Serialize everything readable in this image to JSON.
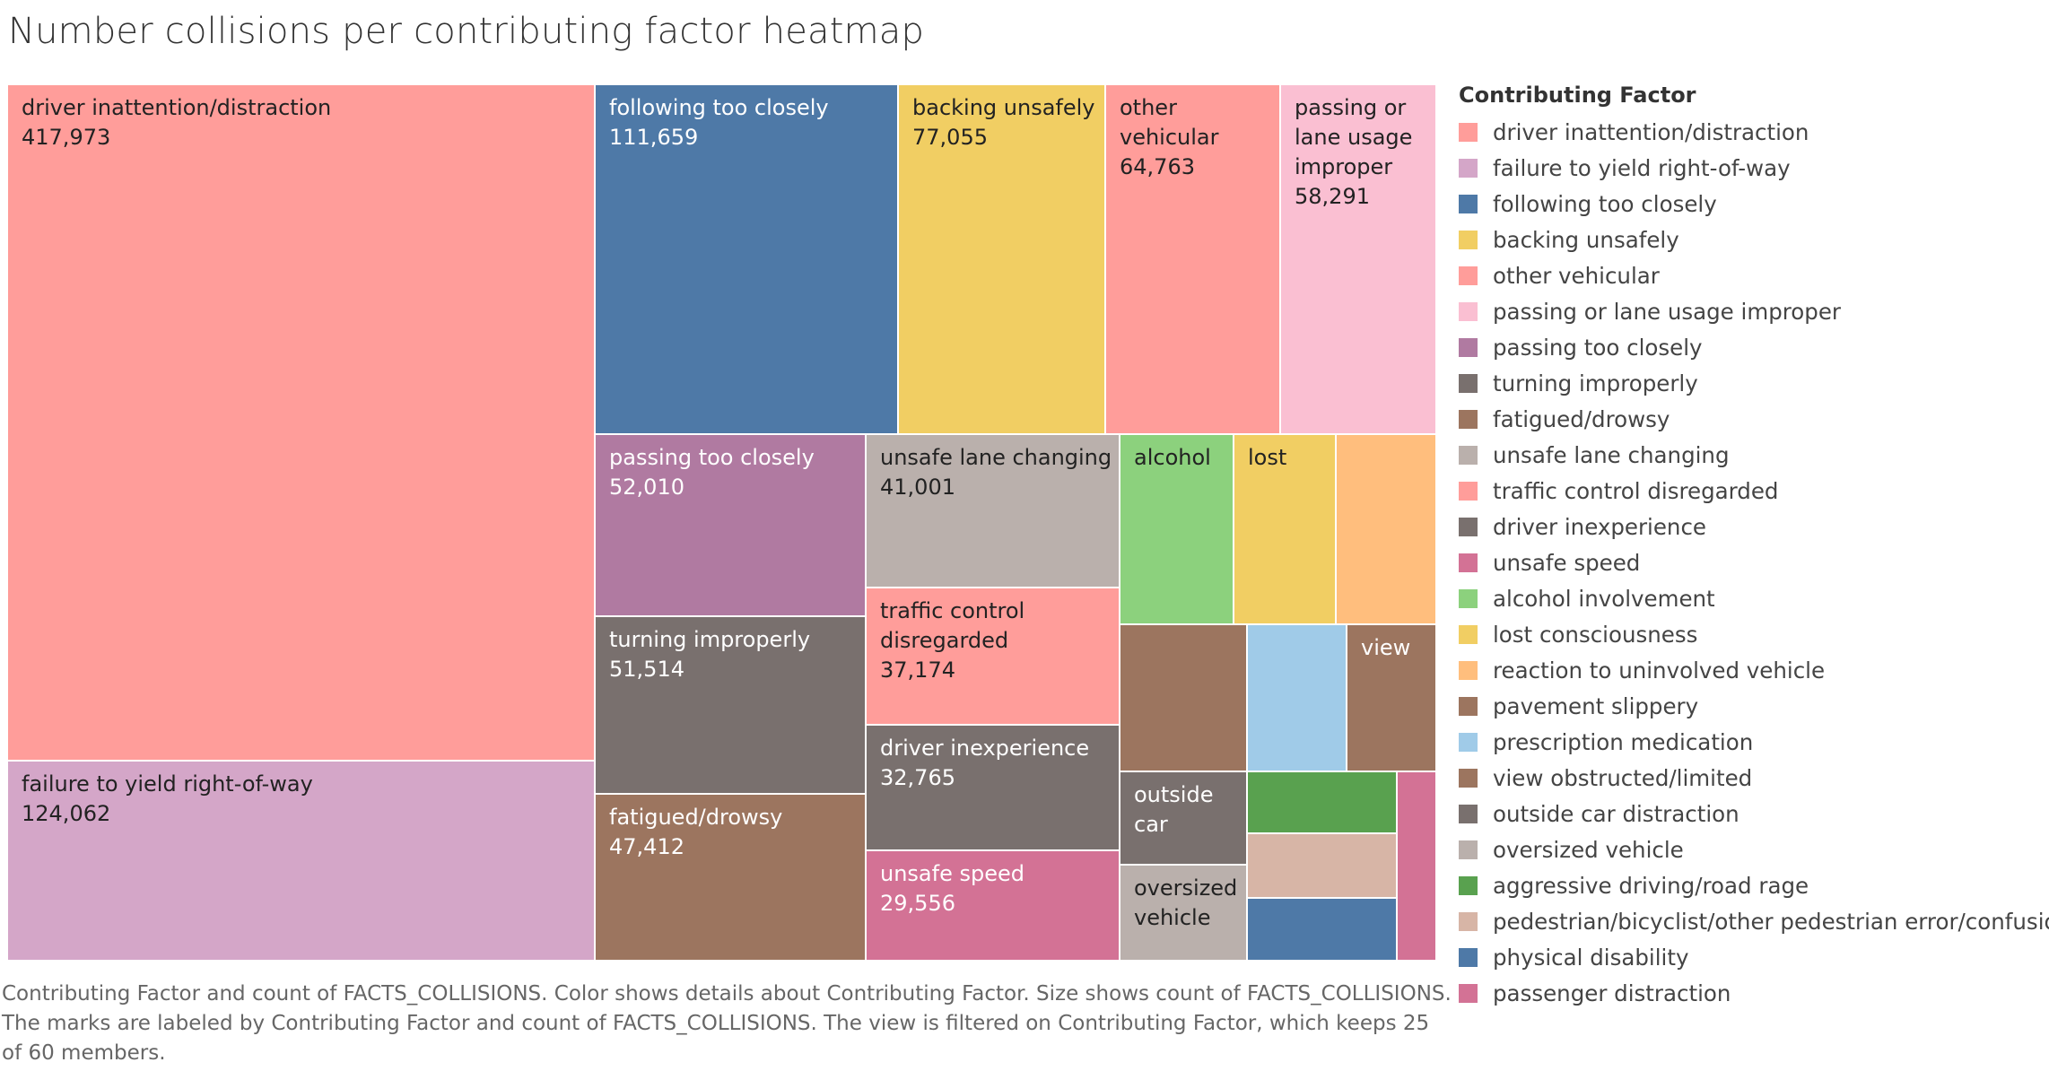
{
  "title": "Number collisions per contributing factor heatmap",
  "caption": "Contributing Factor and count of FACTS_COLLISIONS.  Color shows details about Contributing Factor.  Size shows count of FACTS_COLLISIONS.  The marks are labeled by Contributing Factor and count of FACTS_COLLISIONS. The view is filtered on Contributing Factor, which keeps 25 of 60 members.",
  "chart_data": {
    "type": "treemap",
    "legend_title": "Contributing Factor",
    "legend_position": "right",
    "items": [
      {
        "name": "driver inattention/distraction",
        "value": 417973,
        "color": "#ff9d9a",
        "label_text": "driver inattention/distraction",
        "value_text": "417,973"
      },
      {
        "name": "failure to yield right-of-way",
        "value": 124062,
        "color": "#d4a6c8",
        "label_text": "failure to yield right-of-way",
        "value_text": "124,062"
      },
      {
        "name": "following too closely",
        "value": 111659,
        "color": "#4e79a7",
        "label_text": "following too closely",
        "value_text": "111,659"
      },
      {
        "name": "backing unsafely",
        "value": 77055,
        "color": "#f1ce63",
        "label_text": "backing unsafely",
        "value_text": "77,055"
      },
      {
        "name": "other vehicular",
        "value": 64763,
        "color": "#ff9d9a",
        "label_text": "other\nvehicular",
        "value_text": "64,763"
      },
      {
        "name": "passing or lane usage improper",
        "value": 58291,
        "color": "#fabfd2",
        "label_text": "passing or\nlane usage\nimproper",
        "value_text": "58,291"
      },
      {
        "name": "passing too closely",
        "value": 52010,
        "color": "#b07aa1",
        "label_text": "passing too closely",
        "value_text": "52,010"
      },
      {
        "name": "turning improperly",
        "value": 51514,
        "color": "#79706e",
        "label_text": "turning improperly",
        "value_text": "51,514"
      },
      {
        "name": "fatigued/drowsy",
        "value": 47412,
        "color": "#9c755f",
        "label_text": "fatigued/drowsy",
        "value_text": "47,412"
      },
      {
        "name": "unsafe lane changing",
        "value": 41001,
        "color": "#bab0ac",
        "label_text": "unsafe lane changing",
        "value_text": "41,001"
      },
      {
        "name": "traffic control disregarded",
        "value": 37174,
        "color": "#ff9d9a",
        "label_text": "traffic control\ndisregarded",
        "value_text": "37,174"
      },
      {
        "name": "driver inexperience",
        "value": 32765,
        "color": "#79706e",
        "label_text": "driver inexperience",
        "value_text": "32,765"
      },
      {
        "name": "unsafe speed",
        "value": 29556,
        "color": "#d37295",
        "label_text": "unsafe speed",
        "value_text": "29,556"
      },
      {
        "name": "alcohol involvement",
        "value": null,
        "color": "#8cd17d",
        "label_text": "alcohol",
        "value_text": ""
      },
      {
        "name": "lost consciousness",
        "value": null,
        "color": "#f1ce63",
        "label_text": "lost",
        "value_text": ""
      },
      {
        "name": "reaction to uninvolved vehicle",
        "value": null,
        "color": "#ffbe7d",
        "label_text": "",
        "value_text": ""
      },
      {
        "name": "pavement slippery",
        "value": null,
        "color": "#9c755f",
        "label_text": "",
        "value_text": ""
      },
      {
        "name": "prescription medication",
        "value": null,
        "color": "#a0cbe8",
        "label_text": "",
        "value_text": ""
      },
      {
        "name": "view obstructed/limited",
        "value": null,
        "color": "#9c755f",
        "label_text": "view",
        "value_text": ""
      },
      {
        "name": "outside car distraction",
        "value": null,
        "color": "#79706e",
        "label_text": "outside\ncar",
        "value_text": ""
      },
      {
        "name": "oversized vehicle",
        "value": null,
        "color": "#bab0ac",
        "label_text": "oversized\nvehicle",
        "value_text": ""
      },
      {
        "name": "aggressive driving/road rage",
        "value": null,
        "color": "#59a14f",
        "label_text": "",
        "value_text": ""
      },
      {
        "name": "pedestrian/bicyclist/other pedestrian error/confusion",
        "value": null,
        "color": "#d7b5a6",
        "label_text": "",
        "value_text": ""
      },
      {
        "name": "physical disability",
        "value": null,
        "color": "#4e79a7",
        "label_text": "",
        "value_text": ""
      },
      {
        "name": "passenger distraction",
        "value": null,
        "color": "#d37295",
        "label_text": "",
        "value_text": ""
      }
    ]
  }
}
